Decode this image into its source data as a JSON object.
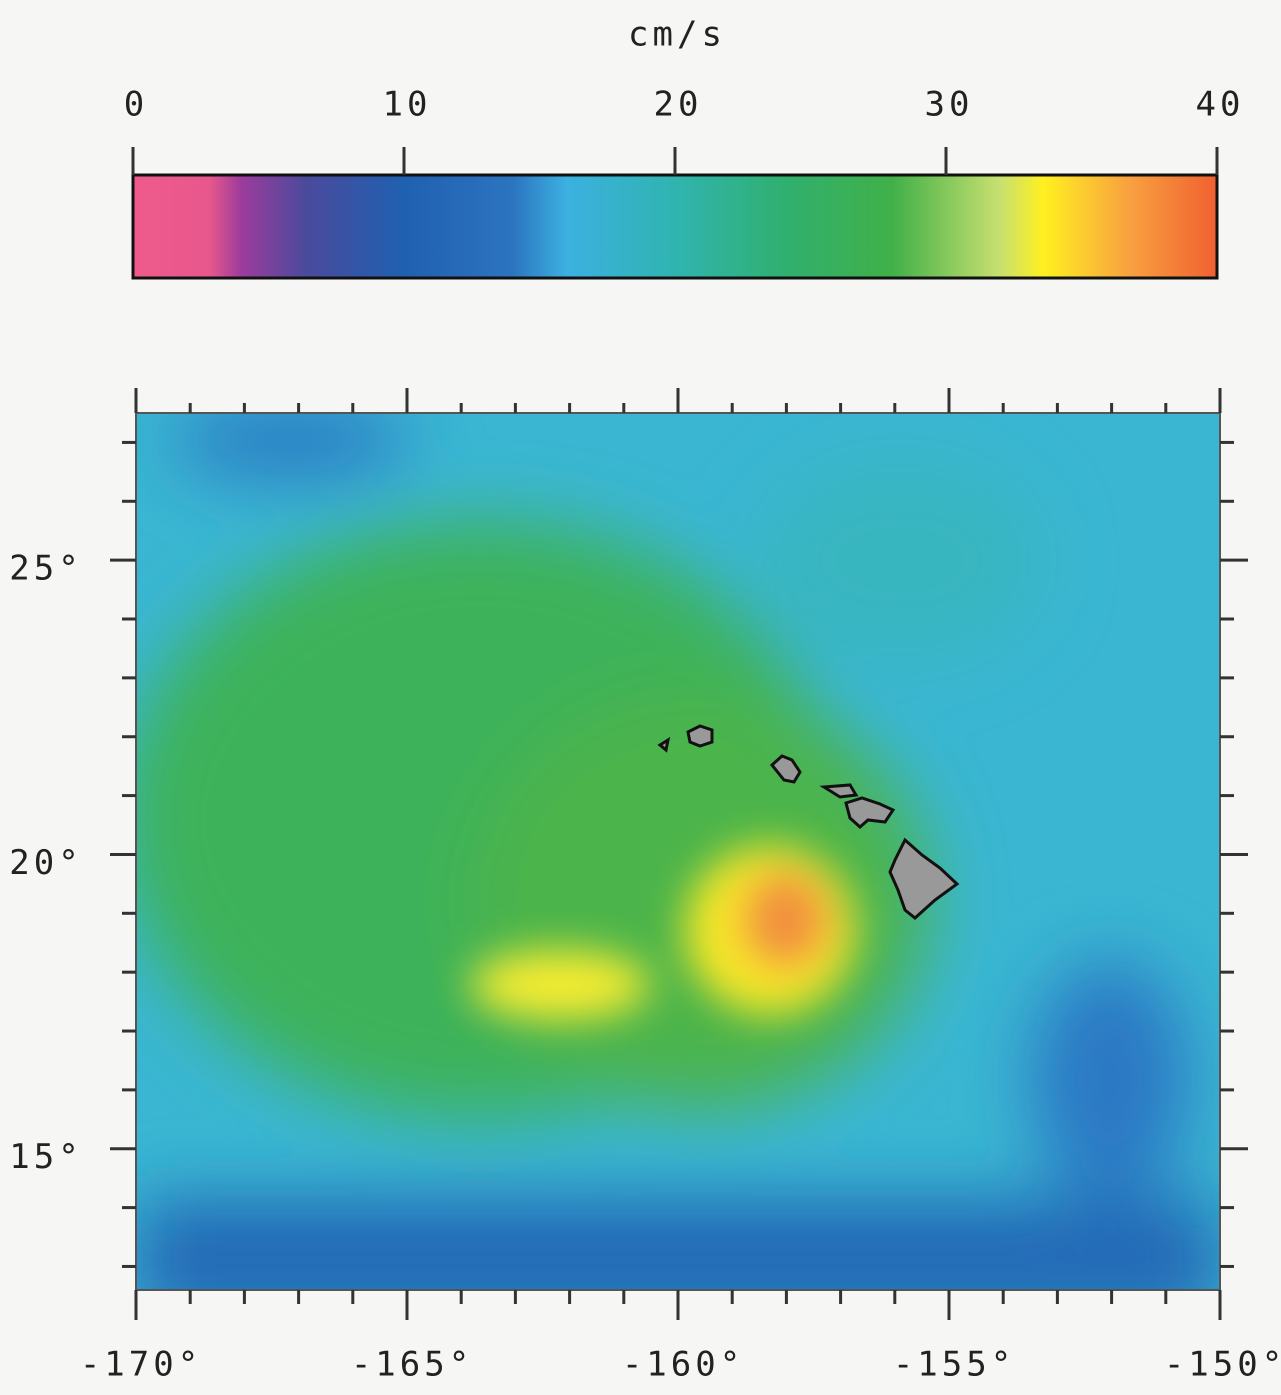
{
  "chart_data": {
    "type": "heatmap-map",
    "colorbar": {
      "label": "cm/s",
      "lim": [
        0,
        40
      ],
      "ticks": [
        0,
        10,
        20,
        30,
        40
      ]
    },
    "xlim": [
      -170,
      -150
    ],
    "ylim": [
      12.6,
      27.5
    ],
    "xticks": [
      {
        "value": -170,
        "label": "-170°"
      },
      {
        "value": -165,
        "label": "-165°"
      },
      {
        "value": -160,
        "label": "-160°"
      },
      {
        "value": -155,
        "label": "-155°"
      },
      {
        "value": -150,
        "label": "-150°"
      }
    ],
    "yticks": [
      {
        "value": 15,
        "label": "15°"
      },
      {
        "value": 20,
        "label": "20°"
      },
      {
        "value": 25,
        "label": "25°"
      }
    ],
    "xminorticks": [
      -169,
      -168,
      -167,
      -166,
      -164,
      -163,
      -162,
      -161,
      -159,
      -158,
      -157,
      -156,
      -154,
      -153,
      -152,
      -151
    ],
    "yminorticks": [
      13,
      14,
      16,
      17,
      18,
      19,
      21,
      22,
      23,
      24,
      26,
      27
    ]
  }
}
